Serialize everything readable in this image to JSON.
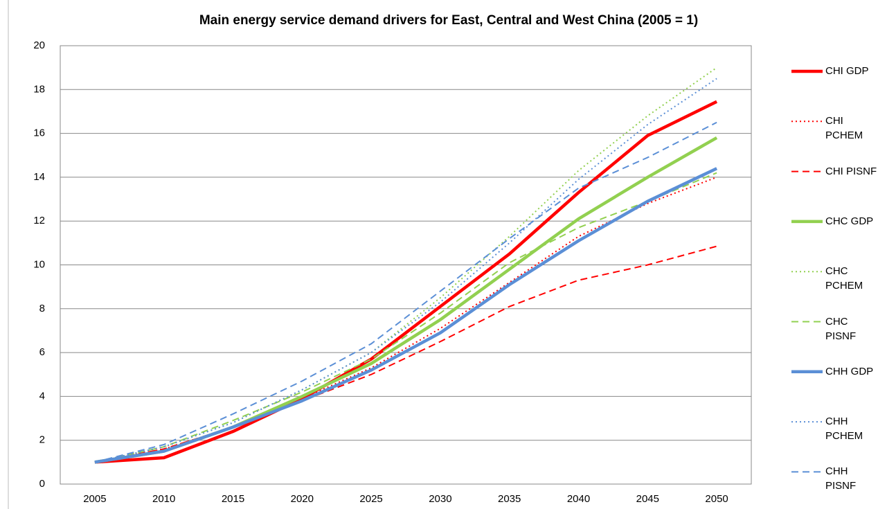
{
  "chart_data": {
    "type": "line",
    "title": "Main energy service demand drivers for East, Central and West China (2005 = 1)",
    "categories": [
      "2005",
      "2010",
      "2015",
      "2020",
      "2025",
      "2030",
      "2035",
      "2040",
      "2045",
      "2050"
    ],
    "ylim": [
      0,
      20
    ],
    "yticks": [
      0,
      2,
      4,
      6,
      8,
      10,
      12,
      14,
      16,
      18,
      20
    ],
    "grid": true,
    "legend": "right",
    "series": [
      {
        "name": "CHI GDP",
        "color": "#ff0000",
        "style": "solid",
        "values": [
          1,
          1.2,
          2.4,
          3.9,
          5.7,
          8.1,
          10.5,
          13.3,
          15.9,
          17.45
        ]
      },
      {
        "name": "CHI PCHEM",
        "color": "#ff0000",
        "style": "dotted",
        "values": [
          1,
          1.6,
          2.6,
          3.9,
          5.3,
          7.1,
          9.2,
          11.3,
          12.8,
          14.0
        ]
      },
      {
        "name": "CHI PISNF",
        "color": "#ff0000",
        "style": "dashed",
        "values": [
          1,
          1.6,
          2.6,
          3.8,
          5.0,
          6.5,
          8.1,
          9.3,
          10.0,
          10.85
        ]
      },
      {
        "name": "CHC GDP",
        "color": "#92d050",
        "style": "solid",
        "values": [
          1,
          1.5,
          2.6,
          4.0,
          5.5,
          7.5,
          9.8,
          12.1,
          14.0,
          15.8
        ]
      },
      {
        "name": "CHC PCHEM",
        "color": "#92d050",
        "style": "dotted",
        "values": [
          1,
          1.7,
          2.8,
          4.3,
          6.0,
          8.5,
          11.3,
          14.3,
          16.8,
          19.0
        ]
      },
      {
        "name": "CHC PISNF",
        "color": "#92d050",
        "style": "dashed",
        "values": [
          1,
          1.7,
          2.9,
          4.2,
          5.7,
          7.8,
          10.1,
          11.7,
          12.9,
          14.2
        ]
      },
      {
        "name": "CHH GDP",
        "color": "#5b8fd6",
        "style": "solid",
        "values": [
          1,
          1.5,
          2.6,
          3.8,
          5.2,
          6.9,
          9.1,
          11.1,
          12.9,
          14.4
        ]
      },
      {
        "name": "CHH PCHEM",
        "color": "#5b8fd6",
        "style": "dotted",
        "values": [
          1,
          1.7,
          2.8,
          4.3,
          6.0,
          8.3,
          11.0,
          13.9,
          16.4,
          18.5
        ]
      },
      {
        "name": "CHH PISNF",
        "color": "#5b8fd6",
        "style": "dashed",
        "values": [
          1,
          1.8,
          3.2,
          4.7,
          6.4,
          8.8,
          11.2,
          13.5,
          14.9,
          16.5
        ]
      }
    ]
  }
}
